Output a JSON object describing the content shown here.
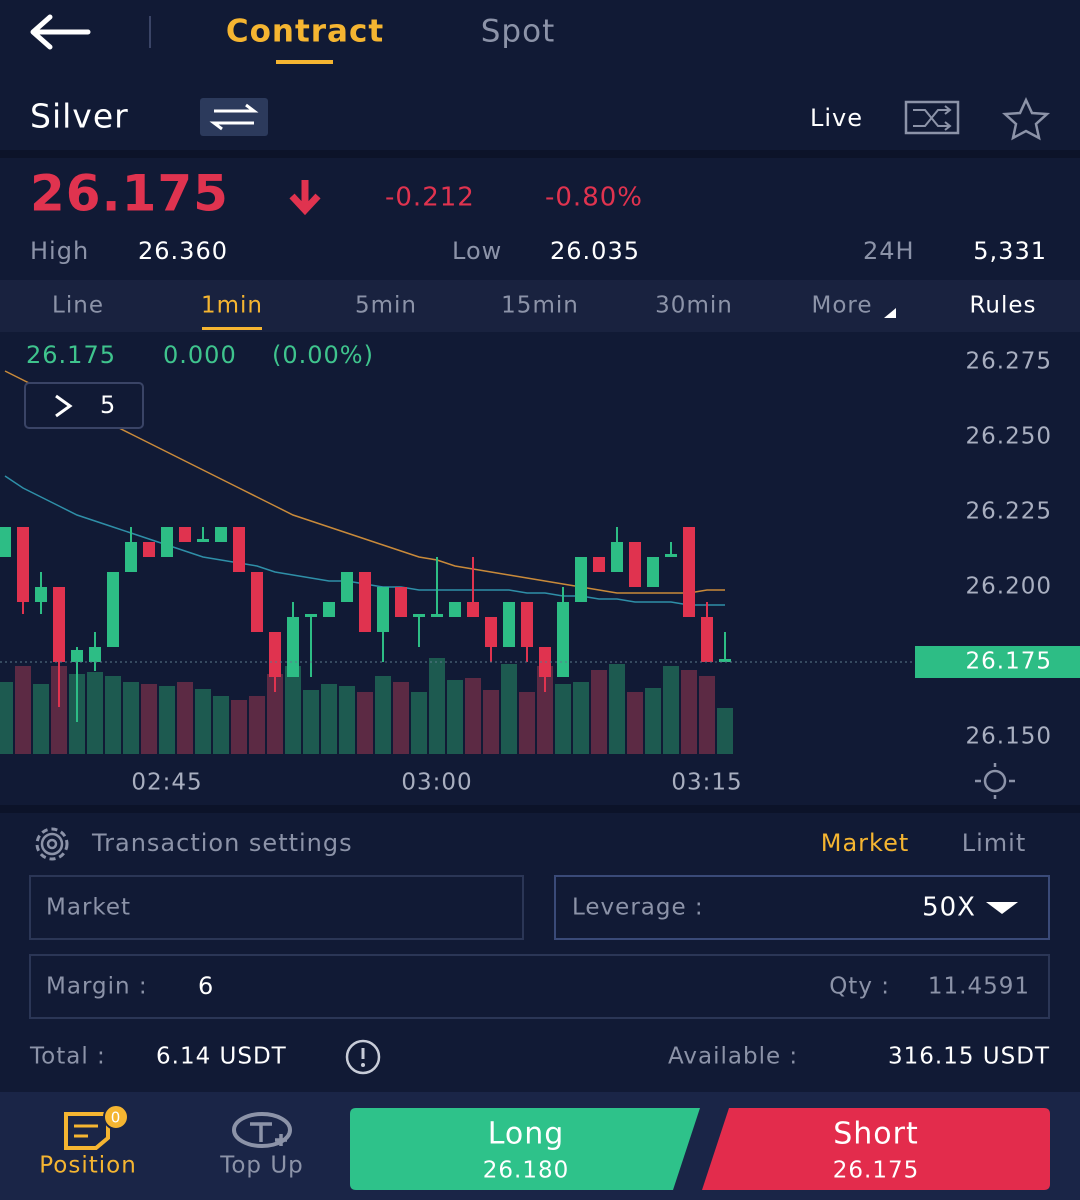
{
  "header": {
    "tabs": [
      "Contract",
      "Spot"
    ]
  },
  "instrument": {
    "name": "Silver",
    "mode": "Live"
  },
  "quote": {
    "price": "26.175",
    "change": "-0.212",
    "change_percent": "-0.80%",
    "high_label": "High",
    "high": "26.360",
    "low_label": "Low",
    "low": "26.035",
    "volume_label": "24H",
    "volume": "5,331"
  },
  "timeframes": [
    "Line",
    "1min",
    "5min",
    "15min",
    "30min",
    "More",
    "Rules"
  ],
  "chart_data": {
    "type": "candlestick",
    "overlay": {
      "price": "26.175",
      "change": "0.000",
      "percent": "(0.00%)"
    },
    "indicator_toggle": "5",
    "categories": [
      null,
      null,
      null,
      null,
      null,
      null,
      null,
      null,
      null,
      "02:45",
      null,
      null,
      null,
      null,
      null,
      null,
      null,
      null,
      null,
      null,
      null,
      null,
      null,
      null,
      "03:00",
      null,
      null,
      null,
      null,
      null,
      null,
      null,
      null,
      null,
      null,
      null,
      null,
      null,
      null,
      "03:15",
      null
    ],
    "open": [
      26.21,
      26.22,
      26.195,
      26.2,
      26.175,
      26.175,
      26.18,
      26.205,
      26.215,
      26.21,
      26.22,
      26.215,
      26.215,
      26.22,
      26.205,
      26.185,
      26.17,
      26.19,
      26.19,
      26.195,
      26.205,
      26.185,
      26.2,
      26.19,
      26.19,
      26.19,
      26.195,
      26.19,
      26.18,
      26.195,
      26.18,
      26.17,
      26.195,
      26.21,
      26.205,
      26.215,
      26.2,
      26.21,
      26.22,
      26.19,
      26.175
    ],
    "high": [
      26.22,
      26.22,
      26.205,
      26.2,
      26.18,
      26.185,
      26.205,
      26.22,
      26.215,
      26.22,
      26.22,
      26.22,
      26.22,
      26.22,
      26.205,
      26.185,
      26.195,
      26.191,
      26.195,
      26.205,
      26.205,
      26.2,
      26.2,
      26.191,
      26.21,
      26.195,
      26.21,
      26.19,
      26.195,
      26.195,
      26.18,
      26.2,
      26.21,
      26.21,
      26.22,
      26.215,
      26.21,
      26.215,
      26.22,
      26.195,
      26.185
    ],
    "low": [
      26.21,
      26.191,
      26.191,
      26.16,
      26.155,
      26.172,
      26.18,
      26.205,
      26.21,
      26.21,
      26.215,
      26.215,
      26.215,
      26.205,
      26.185,
      26.165,
      26.17,
      26.17,
      26.19,
      26.195,
      26.185,
      26.175,
      26.19,
      26.18,
      26.19,
      26.19,
      26.19,
      26.175,
      26.18,
      26.175,
      26.165,
      26.17,
      26.195,
      26.205,
      26.205,
      26.2,
      26.2,
      26.21,
      26.19,
      26.175,
      26.175
    ],
    "close": [
      26.22,
      26.195,
      26.2,
      26.175,
      26.179,
      26.18,
      26.205,
      26.215,
      26.21,
      26.22,
      26.215,
      26.216,
      26.22,
      26.205,
      26.185,
      26.17,
      26.19,
      26.191,
      26.195,
      26.205,
      26.185,
      26.2,
      26.19,
      26.191,
      26.191,
      26.195,
      26.19,
      26.18,
      26.195,
      26.18,
      26.17,
      26.195,
      26.21,
      26.205,
      26.215,
      26.2,
      26.21,
      26.211,
      26.19,
      26.175,
      26.176
    ],
    "volume": [
      72,
      88,
      70,
      88,
      80,
      82,
      78,
      72,
      70,
      68,
      72,
      65,
      58,
      54,
      58,
      80,
      88,
      64,
      70,
      68,
      62,
      78,
      72,
      62,
      96,
      74,
      76,
      64,
      90,
      62,
      88,
      70,
      72,
      84,
      90,
      62,
      66,
      88,
      84,
      78,
      46
    ],
    "vlim": [
      0,
      100
    ],
    "up_color": "#2dbd85",
    "down_color": "#e0334f",
    "volume_up_color": "#1d5a50",
    "volume_down_color": "#5c2a44",
    "series": [
      {
        "color": "#c98a3a",
        "values": [
          26.272,
          26.269,
          26.266,
          26.263,
          26.26,
          26.257,
          26.254,
          26.251,
          26.248,
          26.245,
          26.242,
          26.239,
          26.236,
          26.233,
          26.23,
          26.227,
          26.224,
          26.222,
          26.22,
          26.218,
          26.216,
          26.214,
          26.212,
          26.21,
          26.209,
          26.207,
          26.206,
          26.205,
          26.204,
          26.203,
          26.202,
          26.201,
          26.2,
          26.199,
          26.198,
          26.198,
          26.198,
          26.198,
          26.198,
          26.199,
          26.199
        ]
      },
      {
        "color": "#2f8fa8",
        "values": [
          26.237,
          26.233,
          26.23,
          26.227,
          26.224,
          26.222,
          26.22,
          26.218,
          26.216,
          26.214,
          26.212,
          26.21,
          26.209,
          26.208,
          26.207,
          26.205,
          26.204,
          26.203,
          26.202,
          26.202,
          26.201,
          26.2,
          26.2,
          26.199,
          26.199,
          26.199,
          26.199,
          26.199,
          26.199,
          26.198,
          26.198,
          26.197,
          26.197,
          26.196,
          26.196,
          26.195,
          26.195,
          26.195,
          26.194,
          26.194,
          26.194
        ]
      }
    ],
    "ylim": [
      26.145,
      26.285
    ],
    "yticks": [
      26.275,
      {
        "value": 26.25,
        "label": "26.250"
      },
      26.225,
      {
        "value": 26.2,
        "label": "26.200"
      },
      {
        "value": 26.15,
        "label": "26.150"
      }
    ],
    "last_price": 26.175
  },
  "transaction": {
    "title": "Transaction settings",
    "order_types": [
      "Market",
      "Limit"
    ],
    "order_input": "Market",
    "leverage_label": "Leverage :",
    "leverage": "50X",
    "margin_label": "Margin :",
    "margin": "6",
    "qty_label": "Qty :",
    "qty": "11.4591",
    "total_label": "Total :",
    "total": "6.14 USDT",
    "available_label": "Available :",
    "available": "316.15 USDT"
  },
  "footer": {
    "position": "Position",
    "position_badge": "0",
    "top_up": "Top Up",
    "long": {
      "label": "Long",
      "price": "26.180"
    },
    "short": {
      "label": "Short",
      "price": "26.175"
    }
  }
}
